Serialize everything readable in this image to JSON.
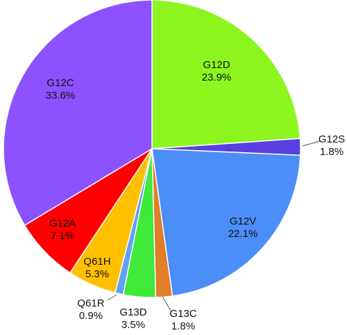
{
  "chart_data": {
    "type": "pie",
    "slices": [
      {
        "label": "G12D",
        "value": 23.9,
        "value_label": "23.9%",
        "color": "#8CF51E"
      },
      {
        "label": "G12S",
        "value": 1.8,
        "value_label": "1.8%",
        "color": "#5A3FE0"
      },
      {
        "label": "G12V",
        "value": 22.1,
        "value_label": "22.1%",
        "color": "#4C8EF7"
      },
      {
        "label": "G13C",
        "value": 1.8,
        "value_label": "1.8%",
        "color": "#E07E2A"
      },
      {
        "label": "G13D",
        "value": 3.5,
        "value_label": "3.5%",
        "color": "#3FEA3A"
      },
      {
        "label": "Q61R",
        "value": 0.9,
        "value_label": "0.9%",
        "color": "#5EA2F5"
      },
      {
        "label": "Q61H",
        "value": 5.3,
        "value_label": "5.3%",
        "color": "#FFC000"
      },
      {
        "label": "G12A",
        "value": 7.1,
        "value_label": "7.1%",
        "color": "#FF0000"
      },
      {
        "label": "G12C",
        "value": 33.6,
        "value_label": "33.6%",
        "color": "#8C52FF"
      }
    ],
    "start": "12 o'clock",
    "direction": "clockwise",
    "legend": "none",
    "title": ""
  }
}
